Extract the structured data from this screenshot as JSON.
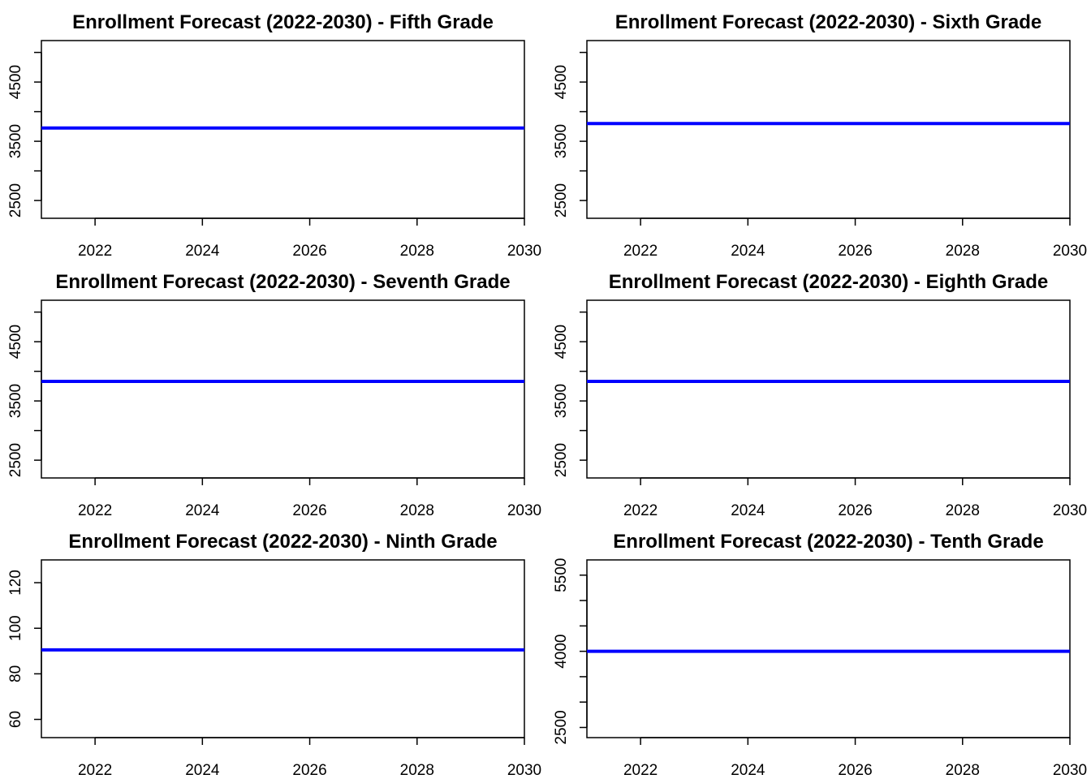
{
  "chart_data": [
    {
      "type": "line",
      "title": "Enrollment Forecast (2022-2030) - Fifth Grade",
      "xlabel": "",
      "ylabel": "",
      "xlim": [
        2021,
        2030
      ],
      "ylim": [
        2200,
        5200
      ],
      "x_ticks": [
        2022,
        2024,
        2026,
        2028,
        2030
      ],
      "y_ticks": [
        2500,
        3000,
        3500,
        4000,
        4500,
        5000
      ],
      "y_tick_labels": [
        "2500",
        "",
        "3500",
        "",
        "4500",
        ""
      ],
      "series": [
        {
          "x": [
            2021,
            2022,
            2023,
            2024,
            2025,
            2026,
            2027,
            2028,
            2029,
            2030
          ],
          "values": [
            3725,
            3725,
            3725,
            3725,
            3725,
            3725,
            3725,
            3725,
            3725,
            3725
          ]
        }
      ],
      "line_color": "#0000ff",
      "grid": false,
      "legend": "none"
    },
    {
      "type": "line",
      "title": "Enrollment Forecast (2022-2030) - Sixth Grade",
      "xlabel": "",
      "ylabel": "",
      "xlim": [
        2021,
        2030
      ],
      "ylim": [
        2200,
        5200
      ],
      "x_ticks": [
        2022,
        2024,
        2026,
        2028,
        2030
      ],
      "y_ticks": [
        2500,
        3000,
        3500,
        4000,
        4500,
        5000
      ],
      "y_tick_labels": [
        "2500",
        "",
        "3500",
        "",
        "4500",
        ""
      ],
      "series": [
        {
          "x": [
            2021,
            2022,
            2023,
            2024,
            2025,
            2026,
            2027,
            2028,
            2029,
            2030
          ],
          "values": [
            3800,
            3800,
            3800,
            3800,
            3800,
            3800,
            3800,
            3800,
            3800,
            3800
          ]
        }
      ],
      "line_color": "#0000ff",
      "grid": false,
      "legend": "none"
    },
    {
      "type": "line",
      "title": "Enrollment Forecast (2022-2030) - Seventh Grade",
      "xlabel": "",
      "ylabel": "",
      "xlim": [
        2021,
        2030
      ],
      "ylim": [
        2200,
        5200
      ],
      "x_ticks": [
        2022,
        2024,
        2026,
        2028,
        2030
      ],
      "y_ticks": [
        2500,
        3000,
        3500,
        4000,
        4500,
        5000
      ],
      "y_tick_labels": [
        "2500",
        "",
        "3500",
        "",
        "4500",
        ""
      ],
      "series": [
        {
          "x": [
            2021,
            2022,
            2023,
            2024,
            2025,
            2026,
            2027,
            2028,
            2029,
            2030
          ],
          "values": [
            3830,
            3830,
            3830,
            3830,
            3830,
            3830,
            3830,
            3830,
            3830,
            3830
          ]
        }
      ],
      "line_color": "#0000ff",
      "grid": false,
      "legend": "none"
    },
    {
      "type": "line",
      "title": "Enrollment Forecast (2022-2030) - Eighth Grade",
      "xlabel": "",
      "ylabel": "",
      "xlim": [
        2021,
        2030
      ],
      "ylim": [
        2200,
        5200
      ],
      "x_ticks": [
        2022,
        2024,
        2026,
        2028,
        2030
      ],
      "y_ticks": [
        2500,
        3000,
        3500,
        4000,
        4500,
        5000
      ],
      "y_tick_labels": [
        "2500",
        "",
        "3500",
        "",
        "4500",
        ""
      ],
      "series": [
        {
          "x": [
            2021,
            2022,
            2023,
            2024,
            2025,
            2026,
            2027,
            2028,
            2029,
            2030
          ],
          "values": [
            3830,
            3830,
            3830,
            3830,
            3830,
            3830,
            3830,
            3830,
            3830,
            3830
          ]
        }
      ],
      "line_color": "#0000ff",
      "grid": false,
      "legend": "none"
    },
    {
      "type": "line",
      "title": "Enrollment Forecast (2022-2030) - Ninth Grade",
      "xlabel": "",
      "ylabel": "",
      "xlim": [
        2021,
        2030
      ],
      "ylim": [
        52,
        130
      ],
      "x_ticks": [
        2022,
        2024,
        2026,
        2028,
        2030
      ],
      "y_ticks": [
        60,
        80,
        100,
        120
      ],
      "y_tick_labels": [
        "60",
        "80",
        "100",
        "120"
      ],
      "series": [
        {
          "x": [
            2021,
            2022,
            2023,
            2024,
            2025,
            2026,
            2027,
            2028,
            2029,
            2030
          ],
          "values": [
            90.5,
            90.5,
            90.5,
            90.5,
            90.5,
            90.5,
            90.5,
            90.5,
            90.5,
            90.5
          ]
        }
      ],
      "line_color": "#0000ff",
      "grid": false,
      "legend": "none"
    },
    {
      "type": "line",
      "title": "Enrollment Forecast (2022-2030) - Tenth Grade",
      "xlabel": "",
      "ylabel": "",
      "xlim": [
        2021,
        2030
      ],
      "ylim": [
        2300,
        5800
      ],
      "x_ticks": [
        2022,
        2024,
        2026,
        2028,
        2030
      ],
      "y_ticks": [
        2500,
        3000,
        3500,
        4000,
        4500,
        5000,
        5500
      ],
      "y_tick_labels": [
        "2500",
        "",
        "",
        "4000",
        "",
        "",
        "5500"
      ],
      "series": [
        {
          "x": [
            2021,
            2022,
            2023,
            2024,
            2025,
            2026,
            2027,
            2028,
            2029,
            2030
          ],
          "values": [
            4000,
            4000,
            4000,
            4000,
            4000,
            4000,
            4000,
            4000,
            4000,
            4000
          ]
        }
      ],
      "line_color": "#0000ff",
      "grid": false,
      "legend": "none"
    }
  ]
}
